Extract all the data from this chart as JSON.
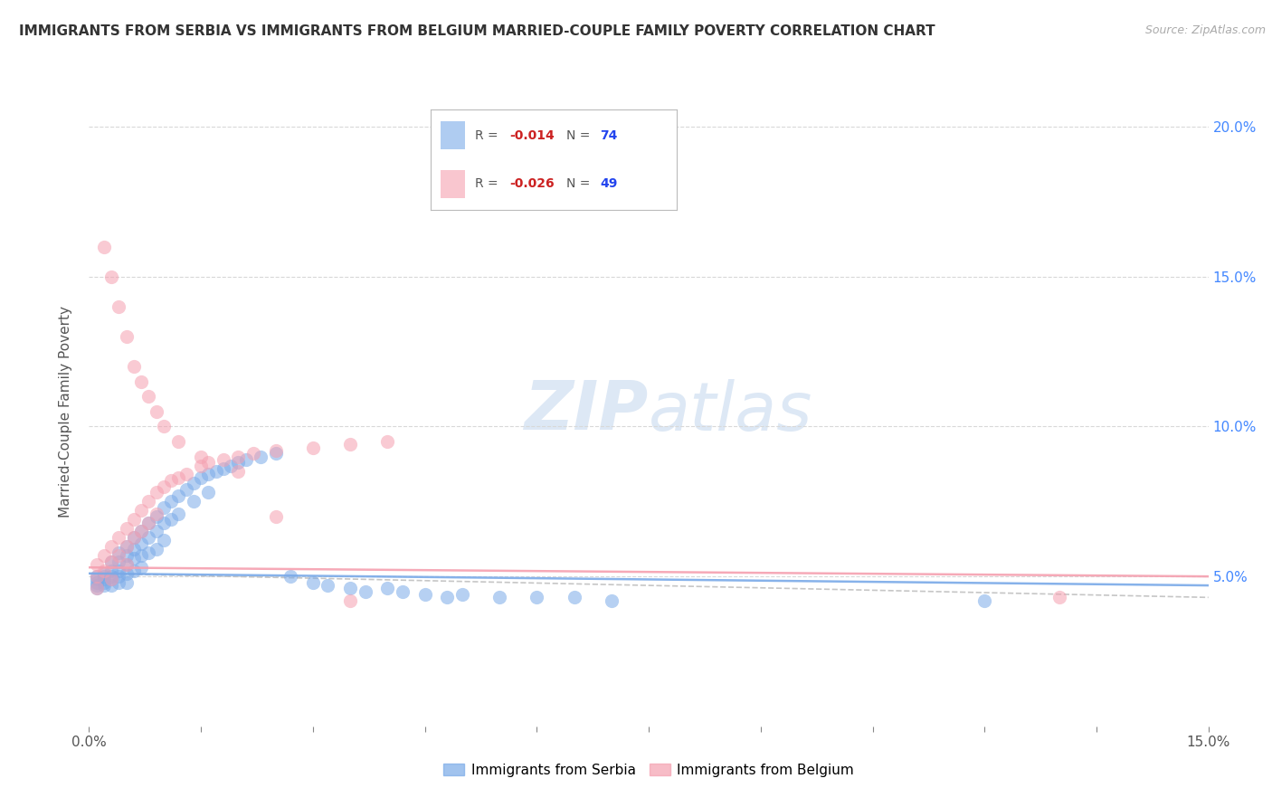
{
  "title": "IMMIGRANTS FROM SERBIA VS IMMIGRANTS FROM BELGIUM MARRIED-COUPLE FAMILY POVERTY CORRELATION CHART",
  "source": "Source: ZipAtlas.com",
  "ylabel": "Married-Couple Family Poverty",
  "xlim": [
    0.0,
    0.15
  ],
  "ylim": [
    0.0,
    0.21
  ],
  "xtick_labels": [
    "0.0%",
    "",
    "",
    "",
    "",
    "",
    "",
    "",
    "",
    "",
    "15.0%"
  ],
  "xtick_vals": [
    0.0,
    0.015,
    0.03,
    0.045,
    0.06,
    0.075,
    0.09,
    0.105,
    0.12,
    0.135,
    0.15
  ],
  "ytick_labels": [
    "5.0%",
    "10.0%",
    "15.0%",
    "20.0%"
  ],
  "ytick_vals": [
    0.05,
    0.1,
    0.15,
    0.2
  ],
  "serbia_color": "#7aaae8",
  "belgium_color": "#f5a0b0",
  "serbia_R": -0.014,
  "serbia_N": 74,
  "belgium_R": -0.026,
  "belgium_N": 49,
  "watermark_zip": "ZIP",
  "watermark_atlas": "atlas",
  "legend_label_serbia": "Immigrants from Serbia",
  "legend_label_belgium": "Immigrants from Belgium",
  "serbia_trend_x": [
    0.0,
    0.15
  ],
  "serbia_trend_y": [
    0.051,
    0.047
  ],
  "belgium_trend_x": [
    0.0,
    0.15
  ],
  "belgium_trend_y": [
    0.053,
    0.05
  ],
  "dash_trend_x": [
    0.0,
    0.15
  ],
  "dash_trend_y": [
    0.051,
    0.043
  ],
  "serbia_scatter_x": [
    0.001,
    0.001,
    0.001,
    0.001,
    0.001,
    0.002,
    0.002,
    0.002,
    0.002,
    0.002,
    0.003,
    0.003,
    0.003,
    0.003,
    0.003,
    0.004,
    0.004,
    0.004,
    0.004,
    0.004,
    0.005,
    0.005,
    0.005,
    0.005,
    0.005,
    0.006,
    0.006,
    0.006,
    0.006,
    0.007,
    0.007,
    0.007,
    0.007,
    0.008,
    0.008,
    0.008,
    0.009,
    0.009,
    0.009,
    0.01,
    0.01,
    0.01,
    0.011,
    0.011,
    0.012,
    0.012,
    0.013,
    0.014,
    0.014,
    0.015,
    0.016,
    0.016,
    0.017,
    0.018,
    0.019,
    0.02,
    0.021,
    0.023,
    0.025,
    0.027,
    0.03,
    0.032,
    0.035,
    0.037,
    0.04,
    0.042,
    0.045,
    0.048,
    0.05,
    0.055,
    0.06,
    0.065,
    0.07,
    0.12
  ],
  "serbia_scatter_y": [
    0.05,
    0.049,
    0.048,
    0.047,
    0.046,
    0.051,
    0.05,
    0.049,
    0.048,
    0.047,
    0.055,
    0.052,
    0.05,
    0.049,
    0.047,
    0.058,
    0.055,
    0.052,
    0.05,
    0.048,
    0.06,
    0.057,
    0.054,
    0.051,
    0.048,
    0.063,
    0.059,
    0.056,
    0.052,
    0.065,
    0.061,
    0.057,
    0.053,
    0.068,
    0.063,
    0.058,
    0.07,
    0.065,
    0.059,
    0.073,
    0.068,
    0.062,
    0.075,
    0.069,
    0.077,
    0.071,
    0.079,
    0.081,
    0.075,
    0.083,
    0.084,
    0.078,
    0.085,
    0.086,
    0.087,
    0.088,
    0.089,
    0.09,
    0.091,
    0.05,
    0.048,
    0.047,
    0.046,
    0.045,
    0.046,
    0.045,
    0.044,
    0.043,
    0.044,
    0.043,
    0.043,
    0.043,
    0.042,
    0.042
  ],
  "belgium_scatter_x": [
    0.001,
    0.001,
    0.001,
    0.002,
    0.002,
    0.003,
    0.003,
    0.003,
    0.004,
    0.004,
    0.005,
    0.005,
    0.005,
    0.006,
    0.006,
    0.007,
    0.007,
    0.008,
    0.008,
    0.009,
    0.009,
    0.01,
    0.011,
    0.012,
    0.013,
    0.015,
    0.016,
    0.018,
    0.02,
    0.022,
    0.025,
    0.03,
    0.035,
    0.04,
    0.002,
    0.003,
    0.004,
    0.005,
    0.006,
    0.007,
    0.008,
    0.009,
    0.01,
    0.012,
    0.015,
    0.02,
    0.025,
    0.035,
    0.13
  ],
  "belgium_scatter_y": [
    0.054,
    0.05,
    0.046,
    0.057,
    0.052,
    0.06,
    0.055,
    0.049,
    0.063,
    0.057,
    0.066,
    0.06,
    0.054,
    0.069,
    0.063,
    0.072,
    0.065,
    0.075,
    0.068,
    0.078,
    0.071,
    0.08,
    0.082,
    0.083,
    0.084,
    0.087,
    0.088,
    0.089,
    0.09,
    0.091,
    0.092,
    0.093,
    0.094,
    0.095,
    0.16,
    0.15,
    0.14,
    0.13,
    0.12,
    0.115,
    0.11,
    0.105,
    0.1,
    0.095,
    0.09,
    0.085,
    0.07,
    0.042,
    0.043
  ]
}
